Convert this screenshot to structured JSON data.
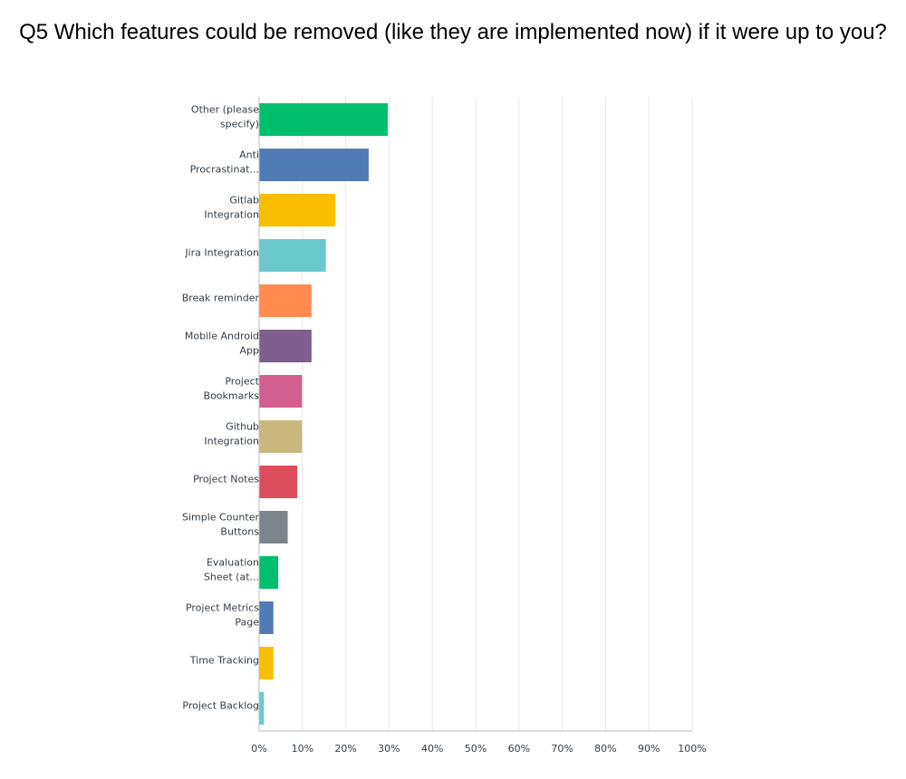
{
  "chart_data": {
    "type": "bar",
    "orientation": "horizontal",
    "title": "Q5 Which features could be removed (like they are implemented now) if it were up to you?",
    "categories": [
      "Other (please specify)",
      "Anti Procrastinat...",
      "Gitlab Integration",
      "Jira Integration",
      "Break reminder",
      "Mobile Android App",
      "Project Bookmarks",
      "Github Integration",
      "Project Notes",
      "Simple Counter Buttons",
      "Evaluation Sheet (at...",
      "Project Metrics Page",
      "Time Tracking",
      "Project Backlog"
    ],
    "values": [
      29.7,
      25.3,
      17.6,
      15.4,
      12.1,
      12.1,
      9.9,
      9.9,
      8.8,
      6.6,
      4.4,
      3.3,
      3.3,
      1.1
    ],
    "colors": [
      "#00bf6f",
      "#507cb6",
      "#f9be00",
      "#6bc8cd",
      "#ff8b4f",
      "#7f5f90",
      "#d25f90",
      "#c9b87e",
      "#dc4e5d",
      "#7d858c",
      "#00bf6f",
      "#507cb6",
      "#f9be00",
      "#6bc8cd"
    ],
    "xlim": [
      0,
      100
    ],
    "x_ticks": [
      "0%",
      "10%",
      "20%",
      "30%",
      "40%",
      "50%",
      "60%",
      "70%",
      "80%",
      "90%",
      "100%"
    ],
    "xlabel": "",
    "ylabel": "",
    "grid": true
  }
}
